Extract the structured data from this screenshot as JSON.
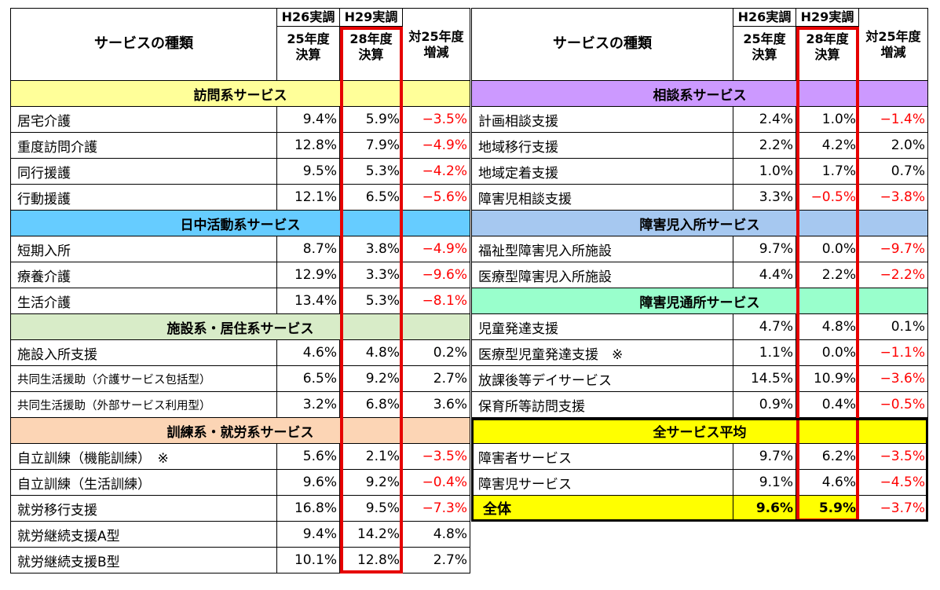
{
  "header": {
    "service_type": "サービスの種類",
    "survey_h26": "H26実調",
    "survey_h29": "H29実調",
    "year_h26": "25年度\n決算",
    "year_h29": "28年度\n決算",
    "change": "対25年度\n増減"
  },
  "left_sections": [
    {
      "title": "訪問系サービス",
      "color": "#ffff99",
      "rows": [
        {
          "name": "居宅介護",
          "h26": "9.4%",
          "h29": "5.9%",
          "change": "−3.5%",
          "neg": true
        },
        {
          "name": "重度訪問介護",
          "h26": "12.8%",
          "h29": "7.9%",
          "change": "−4.9%",
          "neg": true
        },
        {
          "name": "同行援護",
          "h26": "9.5%",
          "h29": "5.3%",
          "change": "−4.2%",
          "neg": true
        },
        {
          "name": "行動援護",
          "h26": "12.1%",
          "h29": "6.5%",
          "change": "−5.6%",
          "neg": true
        }
      ]
    },
    {
      "title": "日中活動系サービス",
      "color": "#66ccff",
      "rows": [
        {
          "name": "短期入所",
          "h26": "8.7%",
          "h29": "3.8%",
          "change": "−4.9%",
          "neg": true
        },
        {
          "name": "療養介護",
          "h26": "12.9%",
          "h29": "3.3%",
          "change": "−9.6%",
          "neg": true
        },
        {
          "name": "生活介護",
          "h26": "13.4%",
          "h29": "5.3%",
          "change": "−8.1%",
          "neg": true
        }
      ]
    },
    {
      "title": "施設系・居住系サービス",
      "color": "#d8ecc8",
      "rows": [
        {
          "name": "施設入所支援",
          "h26": "4.6%",
          "h29": "4.8%",
          "change": "0.2%",
          "neg": false
        },
        {
          "name": "共同生活援助（介護サービス包括型）",
          "h26": "6.5%",
          "h29": "9.2%",
          "change": "2.7%",
          "neg": false,
          "small": true
        },
        {
          "name": "共同生活援助（外部サービス利用型）",
          "h26": "3.2%",
          "h29": "6.8%",
          "change": "3.6%",
          "neg": false,
          "small": true
        }
      ]
    },
    {
      "title": "訓練系・就労系サービス",
      "color": "#fcd5b5",
      "rows": [
        {
          "name": "自立訓練（機能訓練）　※",
          "h26": "5.6%",
          "h29": "2.1%",
          "change": "−3.5%",
          "neg": true
        },
        {
          "name": "自立訓練（生活訓練）",
          "h26": "9.6%",
          "h29": "9.2%",
          "change": "−0.4%",
          "neg": true
        },
        {
          "name": "就労移行支援",
          "h26": "16.8%",
          "h29": "9.5%",
          "change": "−7.3%",
          "neg": true
        },
        {
          "name": "就労継続支援A型",
          "h26": "9.4%",
          "h29": "14.2%",
          "change": "4.8%",
          "neg": false
        },
        {
          "name": "就労継続支援B型",
          "h26": "10.1%",
          "h29": "12.8%",
          "change": "2.7%",
          "neg": false
        }
      ]
    }
  ],
  "right_sections": [
    {
      "title": "相談系サービス",
      "color": "#cc99ff",
      "rows": [
        {
          "name": "計画相談支援",
          "h26": "2.4%",
          "h29": "1.0%",
          "change": "−1.4%",
          "neg": true
        },
        {
          "name": "地域移行支援",
          "h26": "2.2%",
          "h29": "4.2%",
          "change": "2.0%",
          "neg": false
        },
        {
          "name": "地域定着支援",
          "h26": "1.0%",
          "h29": "1.7%",
          "change": "0.7%",
          "neg": false
        },
        {
          "name": "障害児相談支援",
          "h26": "3.3%",
          "h29": "−0.5%",
          "change": "−3.8%",
          "neg": true,
          "h29neg": true
        }
      ]
    },
    {
      "title": "障害児入所サービス",
      "color": "#a6c8f0",
      "rows": [
        {
          "name": "福祉型障害児入所施設",
          "h26": "9.7%",
          "h29": "0.0%",
          "change": "−9.7%",
          "neg": true
        },
        {
          "name": "医療型障害児入所施設",
          "h26": "4.4%",
          "h29": "2.2%",
          "change": "−2.2%",
          "neg": true
        }
      ]
    },
    {
      "title": "障害児通所サービス",
      "color": "#99ffcc",
      "rows": [
        {
          "name": "児童発達支援",
          "h26": "4.7%",
          "h29": "4.8%",
          "change": "0.1%",
          "neg": false
        },
        {
          "name": "医療型児童発達支援　※",
          "h26": "1.1%",
          "h29": "0.0%",
          "change": "−1.1%",
          "neg": true
        },
        {
          "name": "放課後等デイサービス",
          "h26": "14.5%",
          "h29": "10.9%",
          "change": "−3.6%",
          "neg": true
        },
        {
          "name": "保育所等訪問支援",
          "h26": "0.9%",
          "h29": "0.4%",
          "change": "−0.5%",
          "neg": true
        }
      ]
    },
    {
      "title": "全サービス平均",
      "color": "#ffff00",
      "rows": [
        {
          "name": "障害者サービス",
          "h26": "9.7%",
          "h29": "6.2%",
          "change": "−3.5%",
          "neg": true
        },
        {
          "name": "障害児サービス",
          "h26": "9.1%",
          "h29": "4.6%",
          "change": "−4.5%",
          "neg": true
        },
        {
          "name": "全体",
          "h26": "9.6%",
          "h29": "5.9%",
          "change": "−3.7%",
          "neg": true,
          "overall": true
        }
      ]
    }
  ]
}
